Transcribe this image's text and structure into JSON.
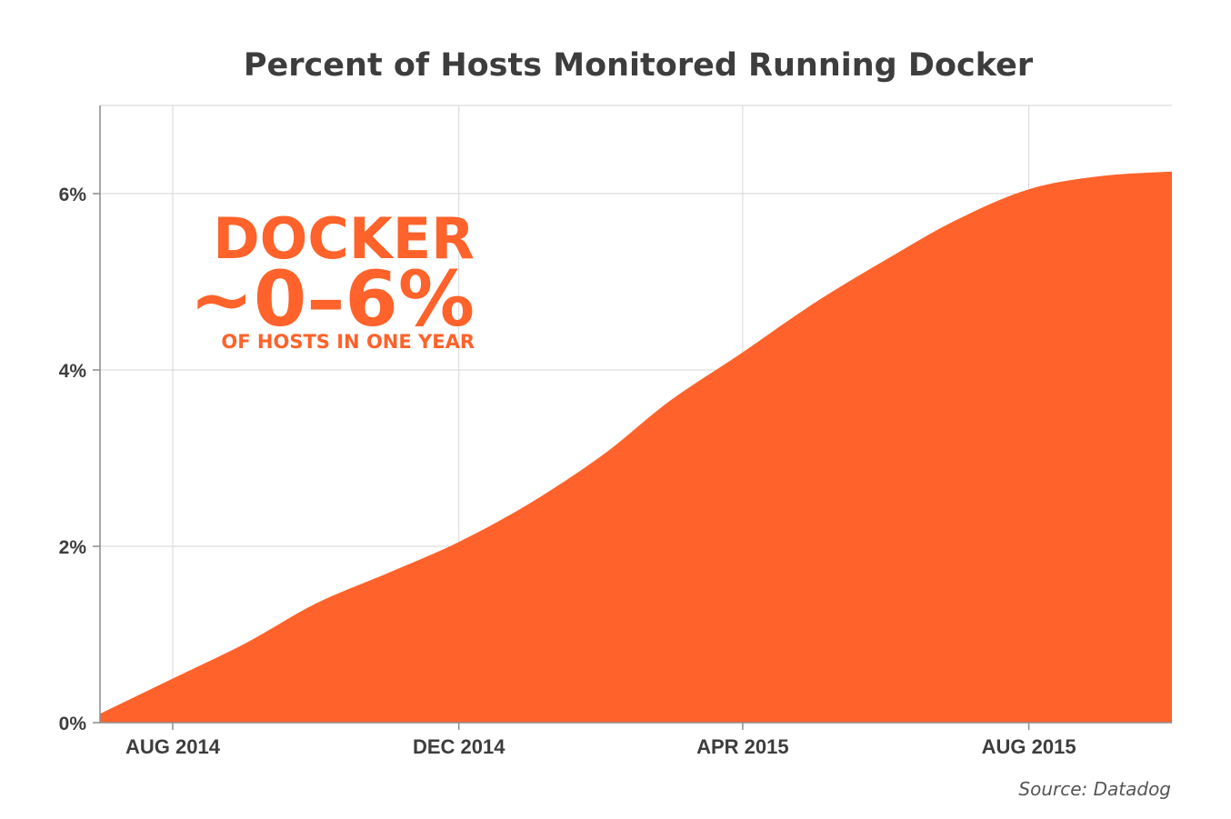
{
  "chart_data": {
    "type": "area",
    "title": "Percent of Hosts Monitored Running Docker",
    "xlabel": "",
    "ylabel": "",
    "x": [
      "2014-07-01",
      "2014-08-01",
      "2014-09-01",
      "2014-10-01",
      "2014-11-01",
      "2014-12-01",
      "2015-01-01",
      "2015-02-01",
      "2015-03-01",
      "2015-04-01",
      "2015-05-01",
      "2015-06-01",
      "2015-07-01",
      "2015-08-01",
      "2015-09-01",
      "2015-10-01"
    ],
    "series": [
      {
        "values": [
          0.1,
          0.5,
          0.9,
          1.35,
          1.7,
          2.05,
          2.5,
          3.05,
          3.65,
          4.2,
          4.75,
          5.25,
          5.7,
          6.05,
          6.2,
          6.25
        ]
      }
    ],
    "ylim": [
      0,
      7
    ],
    "xlim": [
      "2014-07-01",
      "2015-10-01"
    ],
    "yticks": [
      0,
      2,
      4,
      6
    ],
    "ytick_labels": [
      "0%",
      "2%",
      "4%",
      "6%"
    ],
    "xticks": [
      "2014-08-01",
      "2014-12-01",
      "2015-04-01",
      "2015-08-01"
    ],
    "xtick_labels": [
      "AUG 2014",
      "DEC 2014",
      "APR 2015",
      "AUG 2015"
    ],
    "grid": true,
    "annotation": {
      "line1": "DOCKER",
      "line2": "~0–6%",
      "line3": "OF HOSTS IN ONE YEAR"
    },
    "source": "Source: Datadog",
    "colors": {
      "fill": "#ff622a",
      "grid": "#d6d6d6",
      "axis": "#8c8c8c",
      "text": "#3d3d3d"
    }
  }
}
